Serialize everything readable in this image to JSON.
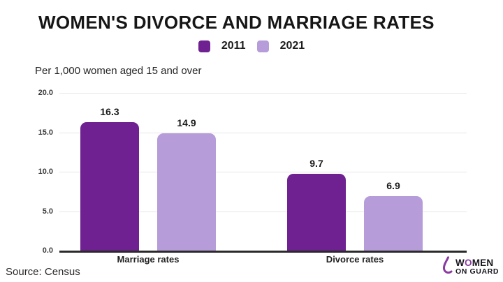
{
  "title": "WOMEN'S DIVORCE AND MARRIAGE RATES",
  "subtitle": "Per 1,000 women aged 15 and over",
  "source": "Source: Census",
  "legend": {
    "items": [
      {
        "label": "2011",
        "color": "#6F2191"
      },
      {
        "label": "2021",
        "color": "#B69CD9"
      }
    ]
  },
  "logo": {
    "line1_pre": "W",
    "line1_o": "O",
    "line1_post": "MEN",
    "line2": "ON GUARD"
  },
  "colors": {
    "series_2011": "#6F2191",
    "series_2021": "#B69CD9",
    "axis_line": "#2B2A2B",
    "gridline": "#E8E6E8",
    "title_text": "#161616",
    "logo_purple": "#8A3AA0"
  },
  "chart_data": {
    "type": "bar",
    "categories": [
      "Marriage rates",
      "Divorce rates"
    ],
    "series": [
      {
        "name": "2011",
        "color": "#6F2191",
        "values": [
          16.3,
          9.7
        ]
      },
      {
        "name": "2021",
        "color": "#B69CD9",
        "values": [
          14.9,
          6.9
        ]
      }
    ],
    "title": "WOMEN'S DIVORCE AND MARRIAGE RATES",
    "xlabel": "",
    "ylabel": "Per 1,000 women aged 15 and over",
    "ylim": [
      0,
      20
    ],
    "yticks": [
      0,
      5,
      10,
      15,
      20
    ],
    "ytick_format": "one_decimal",
    "grid": "horizontal",
    "legend_position": "top-center",
    "value_labels": true
  }
}
